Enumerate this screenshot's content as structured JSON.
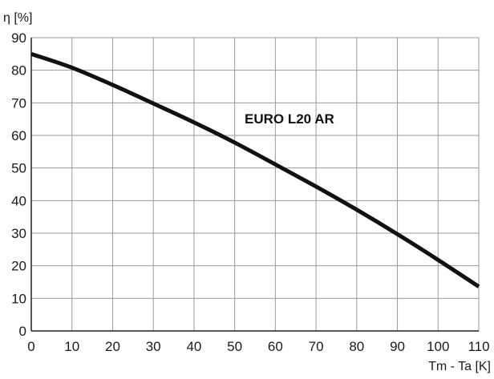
{
  "chart_data": {
    "type": "line",
    "title": "",
    "ylabel": "η [%]",
    "xlabel": "Tm - Ta [K]",
    "xlim": [
      0,
      110
    ],
    "ylim": [
      0,
      90
    ],
    "x_ticks": [
      "0",
      "10",
      "20",
      "30",
      "40",
      "50",
      "60",
      "70",
      "80",
      "90",
      "100",
      "110"
    ],
    "y_ticks": [
      "0",
      "10",
      "20",
      "30",
      "40",
      "50",
      "60",
      "70",
      "80",
      "90"
    ],
    "grid": true,
    "series": [
      {
        "name": "EURO L20 AR",
        "color": "#111111",
        "x": [
          0,
          10,
          20,
          30,
          40,
          50,
          60,
          70,
          80,
          90,
          100,
          110
        ],
        "y": [
          85,
          80.8,
          75.5,
          69.8,
          64,
          57.8,
          51.1,
          44.3,
          37.2,
          29.7,
          21.8,
          13.6
        ]
      }
    ],
    "annotations": [
      "EURO L20 AR"
    ]
  }
}
